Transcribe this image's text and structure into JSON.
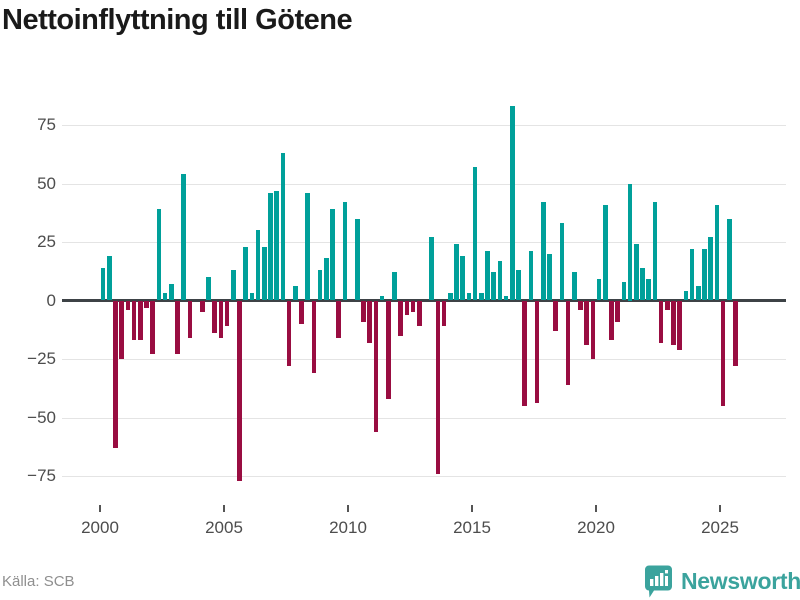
{
  "header": {
    "title": "Nettoinflyttning till Götene"
  },
  "footer": {
    "source": "Källa: SCB",
    "logo_text": "Newsworthy"
  },
  "chart_data": {
    "type": "bar",
    "title": "Nettoinflyttning till Götene",
    "frequency": "quarterly",
    "start": {
      "year": 2000,
      "quarter": 1
    },
    "end": {
      "year": 2025,
      "quarter": 3
    },
    "values": [
      14,
      19,
      -63,
      -25,
      -4,
      -17,
      -17,
      -3,
      -23,
      39,
      3,
      7,
      -23,
      54,
      -16,
      0,
      -5,
      10,
      -14,
      -16,
      -11,
      13,
      -77,
      23,
      3,
      30,
      23,
      46,
      47,
      63,
      -28,
      6,
      -10,
      46,
      -31,
      13,
      18,
      39,
      -16,
      42,
      0,
      35,
      -9,
      -18,
      -56,
      2,
      -42,
      12,
      -15,
      -6,
      -5,
      -11,
      0,
      27,
      -74,
      -11,
      3,
      24,
      19,
      3,
      57,
      3,
      21,
      12,
      17,
      2,
      83,
      13,
      -45,
      21,
      -44,
      42,
      20,
      -13,
      33,
      -36,
      12,
      -4,
      -19,
      -25,
      9,
      41,
      -17,
      -9,
      8,
      50,
      24,
      14,
      9,
      42,
      -18,
      -4,
      -19,
      -21,
      4,
      22,
      6,
      22,
      27,
      41,
      -45,
      35,
      -28
    ],
    "y_ticks": [
      75,
      50,
      25,
      0,
      -25,
      -50,
      -75
    ],
    "x_ticks": [
      2000,
      2005,
      2010,
      2015,
      2020,
      2025
    ],
    "ylim": [
      -85,
      90
    ],
    "grid": true,
    "legend": false,
    "colors": {
      "positive": "#00a09a",
      "negative": "#990d41",
      "zero_axis": "#3d4246",
      "gridline": "#e4e4e4",
      "tick_label": "#4d4d4d",
      "title": "#1a1a1a",
      "source": "#8f8f8f",
      "logo": "#3ba39d"
    }
  }
}
